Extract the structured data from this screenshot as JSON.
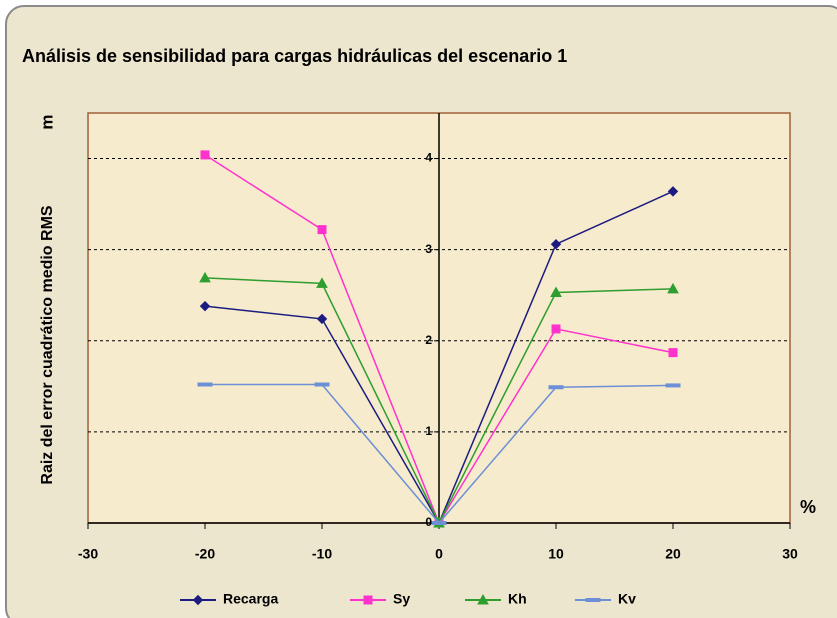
{
  "chart_data": {
    "type": "line",
    "title": "Análisis de sensibilidad para cargas hidráulicas del escenario 1",
    "y_label": "Raiz del error cuadrático medio RMS",
    "y_unit": "m",
    "x_unit": "%",
    "x": [
      -20,
      -10,
      0,
      10,
      20
    ],
    "series": [
      {
        "name": "Recarga",
        "color": "#1c1c80",
        "marker": "diamond",
        "values": [
          2.38,
          2.24,
          0,
          3.06,
          3.64
        ]
      },
      {
        "name": "Sy",
        "color": "#ff33cc",
        "marker": "square",
        "values": [
          4.04,
          3.22,
          0,
          2.13,
          1.87
        ]
      },
      {
        "name": "Kh",
        "color": "#2e9e2e",
        "marker": "triangle",
        "values": [
          2.69,
          2.63,
          0,
          2.53,
          2.57
        ]
      },
      {
        "name": "Kv",
        "color": "#6d8fd6",
        "marker": "dash",
        "values": [
          1.52,
          1.52,
          0,
          1.49,
          1.51
        ]
      }
    ],
    "xlim": [
      -30,
      30
    ],
    "xticks": [
      -30,
      -20,
      -10,
      0,
      10,
      20,
      30
    ],
    "ylim": [
      0,
      4.5
    ],
    "yticks": [
      0,
      1,
      2,
      3,
      4
    ],
    "grid": true,
    "legend": "bottom"
  }
}
